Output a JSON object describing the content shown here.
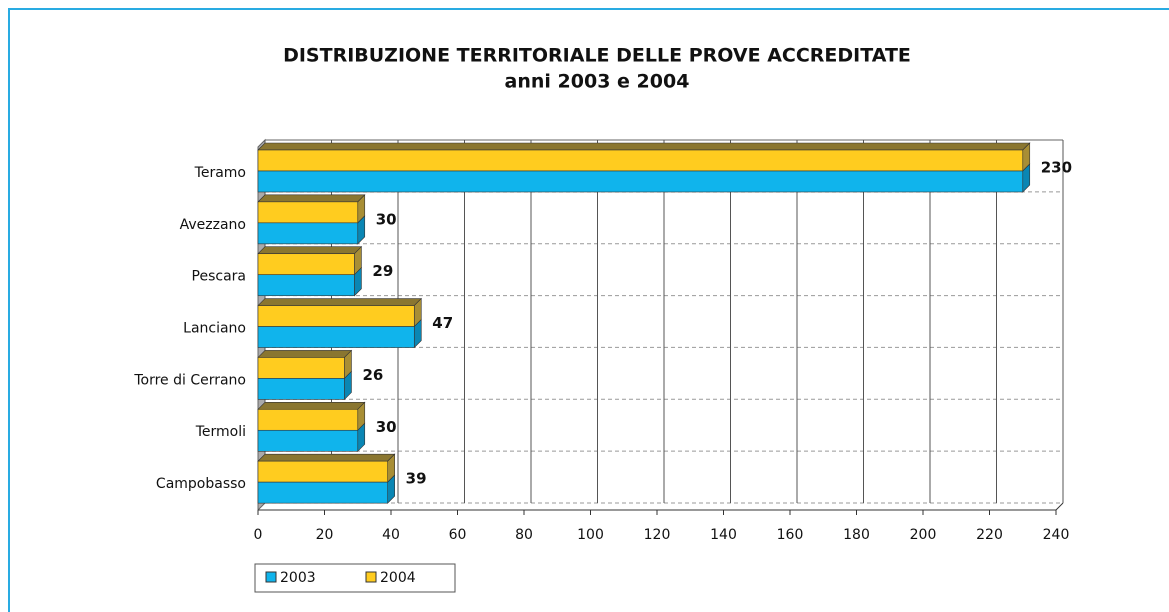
{
  "chart_data": {
    "type": "bar3d_horizontal",
    "title": "DISTRIBUZIONE TERRITORIALE DELLE PROVE ACCREDITATE",
    "subtitle": "anni 2003 e 2004",
    "categories": [
      "Teramo",
      "Avezzano",
      "Pescara",
      "Lanciano",
      "Torre di Cerrano",
      "Termoli",
      "Campobasso"
    ],
    "series": [
      {
        "name": "2003",
        "color": "#10b4ec",
        "values": [
          230,
          30,
          29,
          47,
          26,
          30,
          39
        ]
      },
      {
        "name": "2004",
        "color": "#ffcc1f",
        "values": [
          230,
          30,
          29,
          47,
          26,
          30,
          39
        ]
      }
    ],
    "xlim": [
      0,
      240
    ],
    "xticks": [
      0,
      20,
      40,
      60,
      80,
      100,
      120,
      140,
      160,
      180,
      200,
      220,
      240
    ],
    "grid": true,
    "legend": "bottom-left"
  }
}
